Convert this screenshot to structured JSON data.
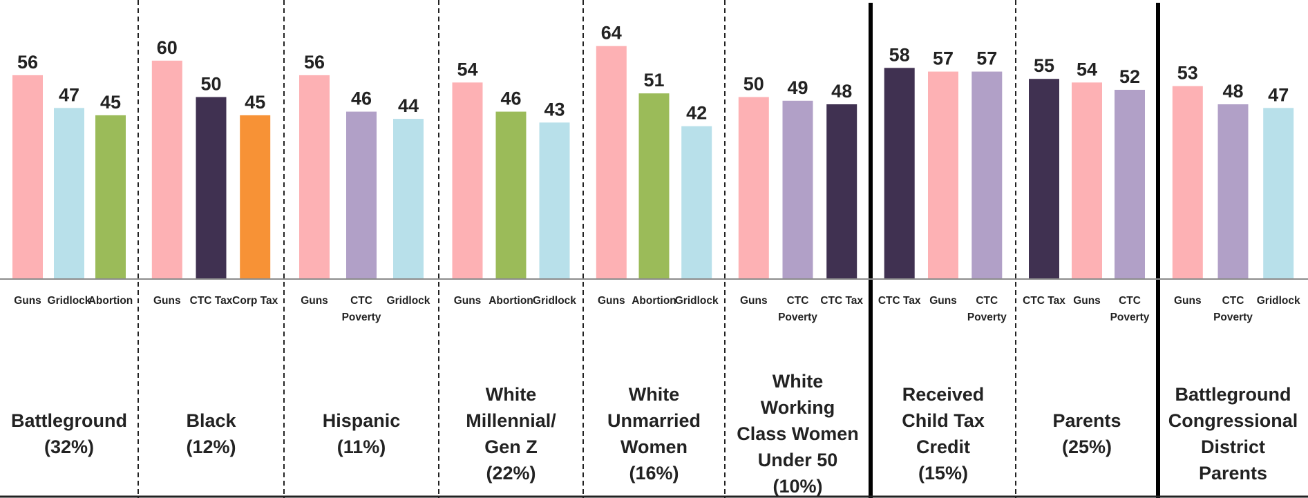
{
  "chart_data": {
    "type": "bar",
    "title": "",
    "xlabel": "",
    "ylabel": "",
    "ylim": [
      0,
      70
    ],
    "grid": false,
    "legend": "none",
    "colors": {
      "Guns": "#fdb1b4",
      "Gridlock": "#b8e0ea",
      "Abortion": "#9bbb59",
      "CTC Tax": "#403151",
      "Corp Tax": "#f79236",
      "CTC Poverty": "#b1a0c7"
    },
    "groups": [
      {
        "label": [
          "Battleground",
          "(32%)"
        ],
        "divider_after": "dashed",
        "bars": [
          {
            "category": [
              "Guns"
            ],
            "value": 56
          },
          {
            "category": [
              "Gridlock"
            ],
            "value": 47
          },
          {
            "category": [
              "Abortion"
            ],
            "value": 45
          }
        ]
      },
      {
        "label": [
          "Black",
          "(12%)"
        ],
        "divider_after": "dashed",
        "bars": [
          {
            "category": [
              "Guns"
            ],
            "value": 60
          },
          {
            "category": [
              "CTC Tax"
            ],
            "value": 50
          },
          {
            "category": [
              "Corp Tax"
            ],
            "value": 45
          }
        ]
      },
      {
        "label": [
          "Hispanic",
          "(11%)"
        ],
        "divider_after": "dashed",
        "bars": [
          {
            "category": [
              "Guns"
            ],
            "value": 56
          },
          {
            "category": [
              "CTC",
              "Poverty"
            ],
            "value": 46
          },
          {
            "category": [
              "Gridlock"
            ],
            "value": 44
          }
        ]
      },
      {
        "label": [
          "White",
          "Millennial/",
          "Gen Z",
          "(22%)"
        ],
        "divider_after": "dashed",
        "bars": [
          {
            "category": [
              "Guns"
            ],
            "value": 54
          },
          {
            "category": [
              "Abortion"
            ],
            "value": 46
          },
          {
            "category": [
              "Gridlock"
            ],
            "value": 43
          }
        ]
      },
      {
        "label": [
          "White",
          "Unmarried",
          "Women",
          "(16%)"
        ],
        "divider_after": "dashed",
        "bars": [
          {
            "category": [
              "Guns"
            ],
            "value": 64
          },
          {
            "category": [
              "Abortion"
            ],
            "value": 51
          },
          {
            "category": [
              "Gridlock"
            ],
            "value": 42
          }
        ]
      },
      {
        "label": [
          "White",
          "Working",
          "Class Women",
          "Under 50",
          "(10%)"
        ],
        "divider_after": "solid",
        "bars": [
          {
            "category": [
              "Guns"
            ],
            "value": 50
          },
          {
            "category": [
              "CTC",
              "Poverty"
            ],
            "value": 49
          },
          {
            "category": [
              "CTC Tax"
            ],
            "value": 48
          }
        ]
      },
      {
        "label": [
          "Received",
          "Child Tax",
          "Credit",
          "(15%)"
        ],
        "divider_after": "dashed",
        "bars": [
          {
            "category": [
              "CTC Tax"
            ],
            "value": 58
          },
          {
            "category": [
              "Guns"
            ],
            "value": 57
          },
          {
            "category": [
              "CTC",
              "Poverty"
            ],
            "value": 57
          }
        ]
      },
      {
        "label": [
          "Parents",
          "(25%)"
        ],
        "divider_after": "solid",
        "bars": [
          {
            "category": [
              "CTC Tax"
            ],
            "value": 55
          },
          {
            "category": [
              "Guns"
            ],
            "value": 54
          },
          {
            "category": [
              "CTC",
              "Poverty"
            ],
            "value": 52
          }
        ]
      },
      {
        "label": [
          "Battleground",
          "Congressional",
          "District",
          "Parents"
        ],
        "divider_after": "none",
        "bars": [
          {
            "category": [
              "Guns"
            ],
            "value": 53
          },
          {
            "category": [
              "CTC",
              "Poverty"
            ],
            "value": 48
          },
          {
            "category": [
              "Gridlock"
            ],
            "value": 47
          }
        ]
      }
    ]
  }
}
